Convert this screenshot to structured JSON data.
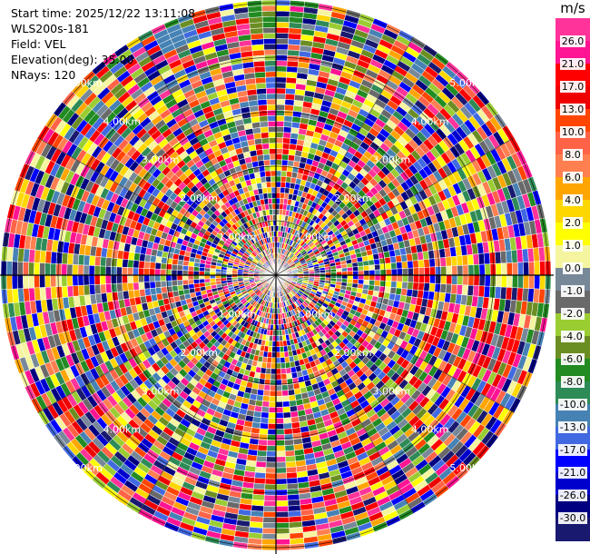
{
  "info": {
    "start_time": "Start time: 2025/12/22 13:11:08",
    "station": "WLS200s-181",
    "field": "Field: VEL",
    "elevation": "Elevation(deg): 35.00",
    "nrays": "NRays: 120"
  },
  "range_labels": [
    "1.00km",
    "2.00km",
    "3.00km",
    "4.00km",
    "5.00km"
  ],
  "colorbar": {
    "unit": "m/s",
    "ticks": [
      "26.0",
      "21.0",
      "17.0",
      "13.0",
      "10.0",
      "8.0",
      "6.0",
      "4.0",
      "2.0",
      "1.0",
      "0.0",
      "-1.0",
      "-2.0",
      "-4.0",
      "-6.0",
      "-8.0",
      "-10.0",
      "-13.0",
      "-17.0",
      "-21.0",
      "-26.0",
      "-30.0"
    ],
    "colors": [
      "#ff3399",
      "#ff1493",
      "#ff0000",
      "#ee0000",
      "#ff4500",
      "#ff6347",
      "#ff7f50",
      "#ffa500",
      "#ffd700",
      "#ffff00",
      "#f5f5a0",
      "#778899",
      "#696969",
      "#9acd32",
      "#6b8e23",
      "#228b22",
      "#2e8b57",
      "#4682b4",
      "#4169e1",
      "#0000ff",
      "#0000cd",
      "#000080",
      "#191970"
    ]
  }
}
